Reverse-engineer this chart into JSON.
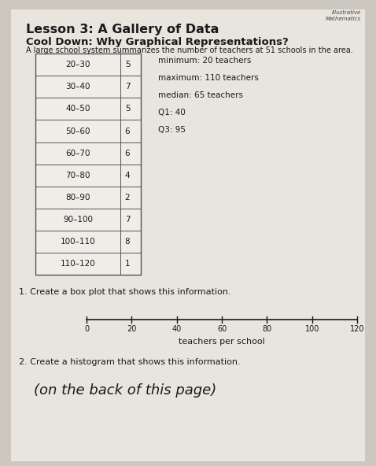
{
  "title": "Lesson 3: A Gallery of Data",
  "subtitle": "Cool Down: Why Graphical Representations?",
  "description": "A large school system summarizes the number of teachers at 51 schools in the area.",
  "table_rows": [
    [
      "20–30",
      "5"
    ],
    [
      "30–40",
      "7"
    ],
    [
      "40–50",
      "5"
    ],
    [
      "50–60",
      "6"
    ],
    [
      "60–70",
      "6"
    ],
    [
      "70–80",
      "4"
    ],
    [
      "80–90",
      "2"
    ],
    [
      "90–100",
      "7"
    ],
    [
      "100–110",
      "8"
    ],
    [
      "110–120",
      "1"
    ]
  ],
  "stats_lines": [
    "minimum: 20 teachers",
    "maximum: 110 teachers",
    "median: 65 teachers",
    "Q1: 40",
    "Q3: 95"
  ],
  "question1": "1. Create a box plot that shows this information.",
  "axis_label": "teachers per school",
  "axis_ticks": [
    0,
    20,
    40,
    60,
    80,
    100,
    120
  ],
  "question2": "2. Create a histogram that shows this information.",
  "handwritten": "(on the back of this page)",
  "background_color": "#ccc8c0",
  "paper_color": "#e8e4de",
  "table_bg": "#f0ede8",
  "table_border": "#555555",
  "text_color": "#1a1a1a",
  "corner_text1": "Illustrative",
  "corner_text2": "Mathematics",
  "title_fontsize": 11.5,
  "subtitle_fontsize": 9.5,
  "desc_fontsize": 7.0,
  "table_fontsize": 7.5,
  "stats_fontsize": 7.5,
  "q_fontsize": 8.0,
  "axis_fontsize": 7.0,
  "hw_fontsize": 13.0
}
